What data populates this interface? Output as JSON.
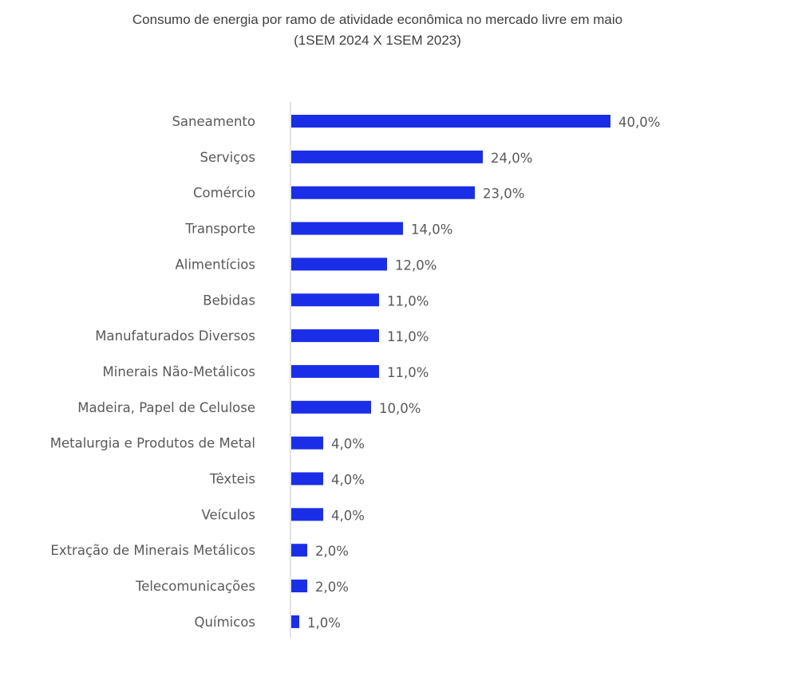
{
  "chart_data": {
    "type": "bar",
    "orientation": "horizontal",
    "title": "Consumo de energia por ramo de atividade econômica no mercado livre em maio",
    "subtitle": "(1SEM 2024 X 1SEM 2023)",
    "categories": [
      "Saneamento",
      "Serviços",
      "Comércio",
      "Transporte",
      "Alimentícios",
      "Bebidas",
      "Manufaturados Diversos",
      "Minerais Não-Metálicos",
      "Madeira, Papel de Celulose",
      "Metalurgia e Produtos de Metal",
      "Têxteis",
      "Veículos",
      "Extração de Minerais Metálicos",
      "Telecomunicações",
      "Químicos"
    ],
    "values": [
      40.0,
      24.0,
      23.0,
      14.0,
      12.0,
      11.0,
      11.0,
      11.0,
      10.0,
      4.0,
      4.0,
      4.0,
      2.0,
      2.0,
      1.0
    ],
    "value_labels": [
      "40,0%",
      "24,0%",
      "23,0%",
      "14,0%",
      "12,0%",
      "11,0%",
      "11,0%",
      "11,0%",
      "10,0%",
      "4,0%",
      "4,0%",
      "4,0%",
      "2,0%",
      "2,0%",
      "1,0%"
    ],
    "unit": "%",
    "xlim": [
      0,
      40
    ],
    "grid": false,
    "legend": "none",
    "bar_color": "#1a2ee8",
    "axis_color": "#d9d9d9"
  }
}
